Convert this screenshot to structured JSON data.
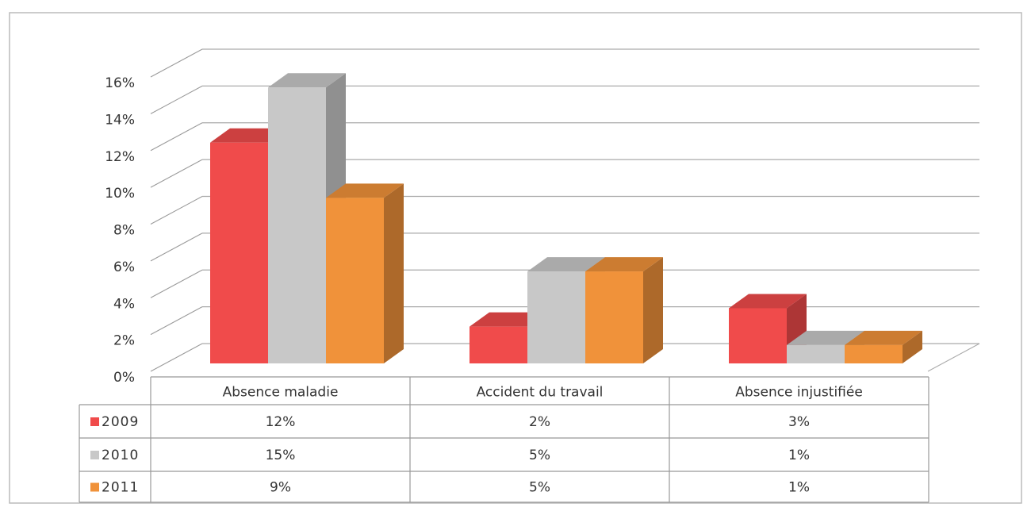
{
  "chart_data": {
    "type": "bar3d",
    "categories": [
      "Absence maladie",
      "Accident du travail",
      "Absence injustifiée"
    ],
    "series": [
      {
        "name": "2009",
        "color": "#f04b4b",
        "values": [
          12,
          2,
          3
        ],
        "value_labels": [
          "12%",
          "2%",
          "3%"
        ]
      },
      {
        "name": "2010",
        "color": "#c8c8c8",
        "values": [
          15,
          5,
          1
        ],
        "value_labels": [
          "15%",
          "5%",
          "1%"
        ]
      },
      {
        "name": "2011",
        "color": "#f0923a",
        "values": [
          9,
          5,
          1
        ],
        "value_labels": [
          "9%",
          "5%",
          "1%"
        ]
      }
    ],
    "ylim": [
      0,
      16
    ],
    "yticks": [
      {
        "value": 0,
        "label": "0%"
      },
      {
        "value": 2,
        "label": "2%"
      },
      {
        "value": 4,
        "label": "4%"
      },
      {
        "value": 6,
        "label": "6%"
      },
      {
        "value": 8,
        "label": "8%"
      },
      {
        "value": 10,
        "label": "10%"
      },
      {
        "value": 12,
        "label": "12%"
      },
      {
        "value": 14,
        "label": "14%"
      },
      {
        "value": 16,
        "label": "16%"
      }
    ],
    "grid": true,
    "data_table": true
  }
}
